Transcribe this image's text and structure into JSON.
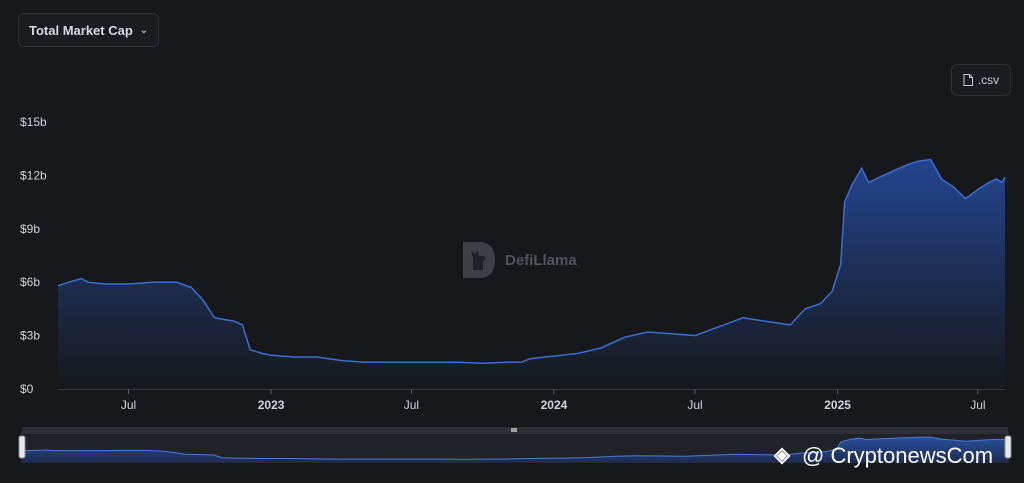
{
  "header": {
    "metric_selector": "Total Market Cap",
    "csv_label": ".csv"
  },
  "watermark": {
    "text": "DefiLlama"
  },
  "brand": {
    "text": "@ CryptonewsCom"
  },
  "colors": {
    "background": "#17181b",
    "line": "#3b6fd1",
    "fill_top": "#23458f",
    "fill_bottom": "#17181b"
  },
  "chart_data": {
    "type": "area",
    "title": "",
    "xlabel": "",
    "ylabel": "",
    "ylim": [
      0,
      15
    ],
    "y_unit": "billion USD",
    "y_ticks": [
      "$0",
      "$3b",
      "$6b",
      "$9b",
      "$12b",
      "$15b"
    ],
    "x_ticks": [
      {
        "label": "Jul",
        "date": "2022-07-01",
        "bold": false
      },
      {
        "label": "2023",
        "date": "2023-01-01",
        "bold": true
      },
      {
        "label": "Jul",
        "date": "2023-07-01",
        "bold": false
      },
      {
        "label": "2024",
        "date": "2024-01-01",
        "bold": true
      },
      {
        "label": "Jul",
        "date": "2024-07-01",
        "bold": false
      },
      {
        "label": "2025",
        "date": "2025-01-01",
        "bold": true
      },
      {
        "label": "Jul",
        "date": "2025-07-01",
        "bold": false
      }
    ],
    "series": [
      {
        "points": [
          [
            "2022-04-01",
            5.8
          ],
          [
            "2022-04-15",
            6.0
          ],
          [
            "2022-05-01",
            6.2
          ],
          [
            "2022-05-10",
            6.0
          ],
          [
            "2022-06-01",
            5.9
          ],
          [
            "2022-07-01",
            5.9
          ],
          [
            "2022-08-01",
            6.0
          ],
          [
            "2022-09-01",
            6.0
          ],
          [
            "2022-09-20",
            5.7
          ],
          [
            "2022-10-05",
            5.0
          ],
          [
            "2022-10-20",
            4.0
          ],
          [
            "2022-11-15",
            3.8
          ],
          [
            "2022-11-25",
            3.6
          ],
          [
            "2022-12-05",
            2.2
          ],
          [
            "2022-12-20",
            2.0
          ],
          [
            "2023-01-01",
            1.9
          ],
          [
            "2023-02-01",
            1.8
          ],
          [
            "2023-03-01",
            1.8
          ],
          [
            "2023-04-01",
            1.6
          ],
          [
            "2023-05-01",
            1.5
          ],
          [
            "2023-06-01",
            1.5
          ],
          [
            "2023-07-01",
            1.5
          ],
          [
            "2023-08-01",
            1.5
          ],
          [
            "2023-09-01",
            1.5
          ],
          [
            "2023-10-01",
            1.45
          ],
          [
            "2023-11-01",
            1.5
          ],
          [
            "2023-11-20",
            1.5
          ],
          [
            "2023-12-01",
            1.7
          ],
          [
            "2023-12-20",
            1.8
          ],
          [
            "2024-01-01",
            1.85
          ],
          [
            "2024-02-01",
            2.0
          ],
          [
            "2024-03-01",
            2.3
          ],
          [
            "2024-04-01",
            2.9
          ],
          [
            "2024-05-01",
            3.2
          ],
          [
            "2024-06-01",
            3.1
          ],
          [
            "2024-07-01",
            3.0
          ],
          [
            "2024-08-01",
            3.5
          ],
          [
            "2024-09-01",
            4.0
          ],
          [
            "2024-10-01",
            3.8
          ],
          [
            "2024-11-01",
            3.6
          ],
          [
            "2024-11-20",
            4.5
          ],
          [
            "2024-12-10",
            4.8
          ],
          [
            "2024-12-25",
            5.5
          ],
          [
            "2025-01-05",
            7.0
          ],
          [
            "2025-01-10",
            10.5
          ],
          [
            "2025-01-20",
            11.5
          ],
          [
            "2025-02-01",
            12.4
          ],
          [
            "2025-02-10",
            11.6
          ],
          [
            "2025-03-01",
            12.0
          ],
          [
            "2025-04-01",
            12.6
          ],
          [
            "2025-04-15",
            12.8
          ],
          [
            "2025-05-01",
            12.9
          ],
          [
            "2025-05-15",
            11.8
          ],
          [
            "2025-06-01",
            11.3
          ],
          [
            "2025-06-15",
            10.7
          ],
          [
            "2025-07-01",
            11.2
          ],
          [
            "2025-07-15",
            11.6
          ],
          [
            "2025-07-25",
            11.8
          ],
          [
            "2025-08-01",
            11.6
          ],
          [
            "2025-08-05",
            11.9
          ]
        ]
      }
    ],
    "grid": false,
    "legend": "none",
    "range_selector": true
  }
}
